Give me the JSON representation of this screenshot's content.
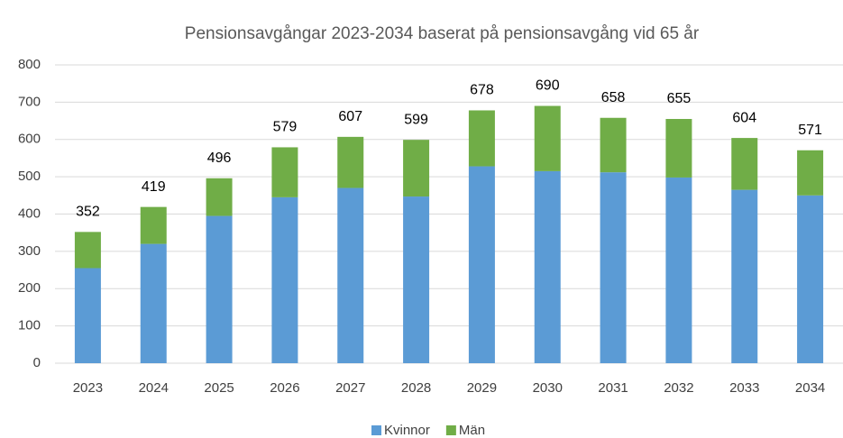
{
  "chart_data": {
    "type": "stacked_bar",
    "title": "Pensionsavgångar 2023-2034 baserat på pensionsavgång vid 65 år",
    "categories": [
      "2023",
      "2024",
      "2025",
      "2026",
      "2027",
      "2028",
      "2029",
      "2030",
      "2031",
      "2032",
      "2033",
      "2034"
    ],
    "series": [
      {
        "name": "Kvinnor",
        "color": "#5b9bd5",
        "values": [
          255,
          320,
          395,
          445,
          470,
          447,
          528,
          515,
          512,
          498,
          465,
          450
        ]
      },
      {
        "name": "Män",
        "color": "#70ad47",
        "values": [
          97,
          99,
          101,
          134,
          137,
          152,
          150,
          175,
          146,
          157,
          139,
          121
        ]
      }
    ],
    "totals": [
      352,
      419,
      496,
      579,
      607,
      599,
      678,
      690,
      658,
      655,
      604,
      571
    ],
    "ylim": [
      0,
      800
    ],
    "yticks": [
      0,
      100,
      200,
      300,
      400,
      500,
      600,
      700,
      800
    ],
    "grid": true,
    "legend": "bottom"
  }
}
